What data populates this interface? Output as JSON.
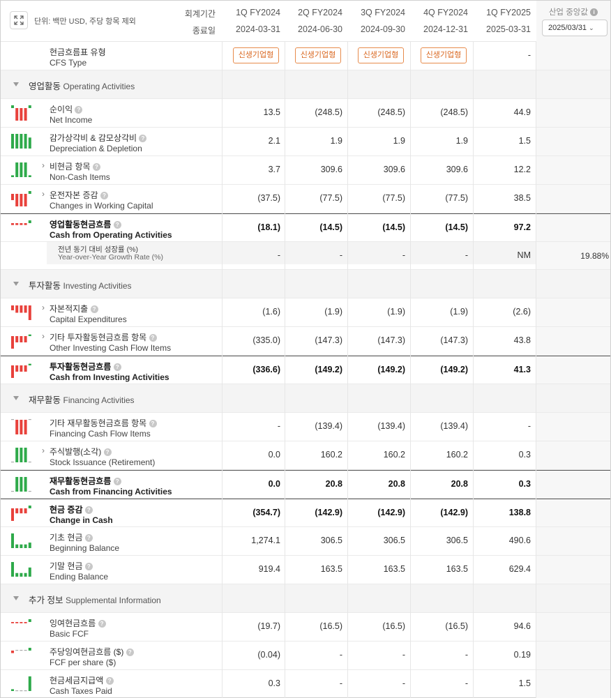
{
  "header": {
    "unit": "단위: 백만 USD, 주당 항목 제외",
    "period_label": "회계기간",
    "end_label": "종료일",
    "periods": [
      "1Q FY2024",
      "2Q FY2024",
      "3Q FY2024",
      "4Q FY2024",
      "1Q FY2025"
    ],
    "dates": [
      "2024-03-31",
      "2024-06-30",
      "2024-09-30",
      "2024-12-31",
      "2025-03-31"
    ],
    "industry_title": "산업 중앙값",
    "industry_select": "2025/03/31"
  },
  "cfs_type": {
    "ko": "현금흐름표 유형",
    "en": "CFS Type",
    "values": [
      "신생기업형",
      "신생기업형",
      "신생기업형",
      "신생기업형"
    ],
    "last": "-"
  },
  "sections": [
    {
      "ko": "영업활동",
      "en": "Operating Activities"
    },
    {
      "ko": "투자활동",
      "en": "Investing Activities"
    },
    {
      "ko": "재무활동",
      "en": "Financing Activities"
    },
    {
      "ko": "추가 정보",
      "en": "Supplemental Information"
    }
  ],
  "rows": [
    {
      "ko": "순이익",
      "en": "Net Income",
      "v": [
        "13.5",
        "(248.5)",
        "(248.5)",
        "(248.5)",
        "44.9"
      ],
      "spark": [
        1,
        -3,
        -3,
        -3,
        1
      ]
    },
    {
      "ko": "감가상각비 & 감모상각비",
      "en": "Depreciation & Depletion",
      "v": [
        "2.1",
        "1.9",
        "1.9",
        "1.9",
        "1.5"
      ],
      "spark": [
        4,
        4,
        4,
        4,
        3
      ]
    },
    {
      "ko": "비현금 항목",
      "en": "Non-Cash Items",
      "v": [
        "3.7",
        "309.6",
        "309.6",
        "309.6",
        "12.2"
      ],
      "spark": [
        0.5,
        4,
        4,
        4,
        0.5
      ]
    },
    {
      "ko": "운전자본 증감",
      "en": "Changes in Working Capital",
      "v": [
        "(37.5)",
        "(77.5)",
        "(77.5)",
        "(77.5)",
        "38.5"
      ],
      "spark": [
        -1,
        -2,
        -2,
        -2,
        1
      ]
    },
    {
      "ko": "영업활동현금흐름",
      "en": "Cash from Operating Activities",
      "v": [
        "(18.1)",
        "(14.5)",
        "(14.5)",
        "(14.5)",
        "97.2"
      ],
      "spark": [
        -0.3,
        -0.3,
        -0.3,
        -0.3,
        2
      ]
    },
    {
      "ko": "전년 동기 대비 성장률 (%)",
      "en": "Year-over-Year Growth Rate (%)",
      "v": [
        "-",
        "-",
        "-",
        "-",
        "NM"
      ],
      "industry": "19.88%"
    },
    {
      "ko": "자본적지출",
      "en": "Capital Expenditures",
      "v": [
        "(1.6)",
        "(1.9)",
        "(1.9)",
        "(1.9)",
        "(2.6)"
      ],
      "spark": [
        -1,
        -1.5,
        -1.5,
        -1.5,
        -3
      ]
    },
    {
      "ko": "기타 투자활동현금흐름 항목",
      "en": "Other Investing Cash Flow Items",
      "v": [
        "(335.0)",
        "(147.3)",
        "(147.3)",
        "(147.3)",
        "43.8"
      ],
      "spark": [
        -3,
        -1.5,
        -1.5,
        -1.5,
        0.5
      ]
    },
    {
      "ko": "투자활동현금흐름",
      "en": "Cash from Investing Activities",
      "v": [
        "(336.6)",
        "(149.2)",
        "(149.2)",
        "(149.2)",
        "41.3"
      ],
      "spark": [
        -3,
        -1.5,
        -1.5,
        -1.5,
        0.5
      ]
    },
    {
      "ko": "기타 재무활동현금흐름 항목",
      "en": "Financing Cash Flow Items",
      "v": [
        "-",
        "(139.4)",
        "(139.4)",
        "(139.4)",
        "-"
      ],
      "spark": [
        0,
        -4,
        -4,
        -4,
        0
      ]
    },
    {
      "ko": "주식발행(소각)",
      "en": "Stock Issuance (Retirement)",
      "v": [
        "0.0",
        "160.2",
        "160.2",
        "160.2",
        "0.3"
      ],
      "spark": [
        0,
        4,
        4,
        4,
        0
      ]
    },
    {
      "ko": "재무활동현금흐름",
      "en": "Cash from Financing Activities",
      "v": [
        "0.0",
        "20.8",
        "20.8",
        "20.8",
        "0.3"
      ],
      "spark": [
        0,
        4,
        4,
        4,
        0
      ]
    },
    {
      "ko": "현금 증감",
      "en": "Change in Cash",
      "v": [
        "(354.7)",
        "(142.9)",
        "(142.9)",
        "(142.9)",
        "138.8"
      ],
      "spark": [
        -3,
        -1.2,
        -1.2,
        -1.2,
        1
      ]
    },
    {
      "ko": "기초 현금",
      "en": "Beginning Balance",
      "v": [
        "1,274.1",
        "306.5",
        "306.5",
        "306.5",
        "490.6"
      ],
      "spark": [
        4,
        1,
        1,
        1,
        1.5
      ]
    },
    {
      "ko": "기말 현금",
      "en": "Ending Balance",
      "v": [
        "919.4",
        "163.5",
        "163.5",
        "163.5",
        "629.4"
      ],
      "spark": [
        4,
        1,
        1,
        1,
        2.5
      ]
    },
    {
      "ko": "잉여현금흐름",
      "en": "Basic FCF",
      "v": [
        "(19.7)",
        "(16.5)",
        "(16.5)",
        "(16.5)",
        "94.6"
      ],
      "spark": [
        -0.3,
        -0.3,
        -0.3,
        -0.3,
        3
      ]
    },
    {
      "ko": "주당잉여현금흐름 ($)",
      "en": "FCF per share ($)",
      "v": [
        "(0.04)",
        "-",
        "-",
        "-",
        "0.19"
      ],
      "spark": [
        -0.6,
        0,
        0,
        0,
        3
      ]
    },
    {
      "ko": "현금세금지급액",
      "en": "Cash Taxes Paid",
      "v": [
        "0.3",
        "-",
        "-",
        "-",
        "1.5"
      ],
      "spark": [
        0.5,
        0,
        0,
        0,
        4
      ]
    }
  ],
  "colors": {
    "pos": "#2eaa4a",
    "neg": "#e8413b",
    "badge": "#d9661e"
  }
}
